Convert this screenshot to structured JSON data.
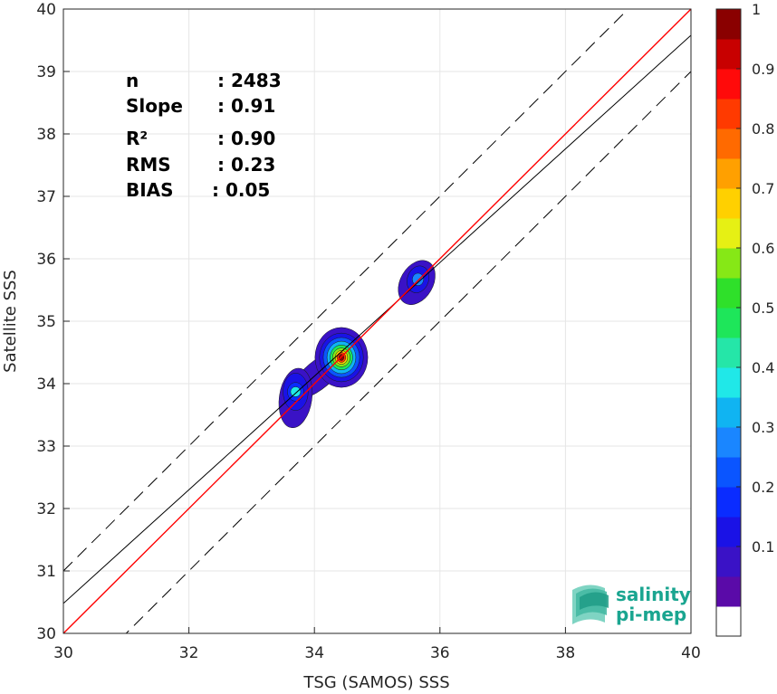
{
  "chart_data": {
    "type": "heatmap",
    "xlabel": "TSG (SAMOS) SSS",
    "ylabel": "Satellite SSS",
    "xlim": [
      30,
      40
    ],
    "ylim": [
      30,
      40
    ],
    "x_ticks": [
      "30",
      "32",
      "34",
      "36",
      "38",
      "40"
    ],
    "y_ticks": [
      "30",
      "31",
      "32",
      "33",
      "34",
      "35",
      "36",
      "37",
      "38",
      "39",
      "40"
    ],
    "grid": true,
    "stats": [
      {
        "label": "n",
        "value": ": 2483"
      },
      {
        "label": "Slope",
        "value": ": 0.91"
      },
      {
        "label": "R²",
        "value": ": 0.90"
      },
      {
        "label": "RMS",
        "value": ": 0.23"
      },
      {
        "label": "BIAS",
        "value": ": 0.05"
      }
    ],
    "lines": {
      "identity": {
        "slope": 1.0,
        "intercept": 0.0,
        "color": "#ff0000"
      },
      "fit": {
        "slope": 0.91,
        "intercept": 3.18,
        "color": "#000000"
      },
      "envelope": {
        "offset": 1.0,
        "style": "dashed",
        "color": "#000000"
      }
    },
    "density_clusters": [
      {
        "x": 33.7,
        "y": 33.87,
        "peak": 0.4
      },
      {
        "x": 34.43,
        "y": 34.42,
        "peak": 1.0
      },
      {
        "x": 35.65,
        "y": 35.67,
        "peak": 0.3
      }
    ],
    "colorbar": {
      "range": [
        0,
        1
      ],
      "tick_labels": [
        "0.1",
        "0.2",
        "0.3",
        "0.4",
        "0.5",
        "0.6",
        "0.7",
        "0.8",
        "0.9",
        "1"
      ],
      "tick_values": [
        0.1,
        0.2,
        0.3,
        0.4,
        0.5,
        0.6,
        0.7,
        0.8,
        0.9,
        1.0
      ],
      "levels": 20,
      "colors": [
        "#ffffff",
        "#5a0aa8",
        "#3a12c6",
        "#1a12e6",
        "#0a2cff",
        "#0a55ff",
        "#1a86ff",
        "#10b4f2",
        "#20e8e8",
        "#25e6a8",
        "#1ee65a",
        "#2fe02a",
        "#86e816",
        "#e6f014",
        "#ffd000",
        "#ffa000",
        "#ff6a00",
        "#ff3a00",
        "#ff0a0a",
        "#c80000",
        "#8a0000"
      ]
    }
  },
  "logo": {
    "line1": "salinity",
    "line2": "pi-mep",
    "color": "#1aa590"
  }
}
